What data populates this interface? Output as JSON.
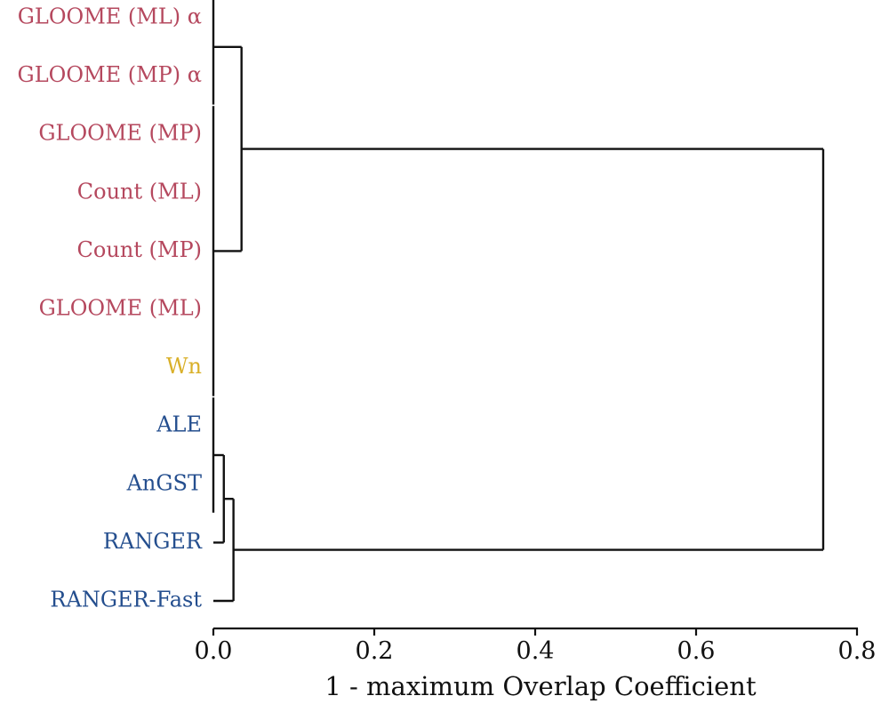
{
  "chart_data": {
    "type": "dendrogram",
    "title": "",
    "xlabel": "1 - maximum Overlap Coefficient",
    "ylabel": "",
    "xlim": [
      0,
      0.8
    ],
    "xticks": [
      "0.0",
      "0.2",
      "0.4",
      "0.6",
      "0.8"
    ],
    "leaves": [
      {
        "label": "GLOOME (ML) α",
        "color": "#b5485e"
      },
      {
        "label": "GLOOME (MP) α",
        "color": "#b5485e"
      },
      {
        "label": "GLOOME (MP)",
        "color": "#b5485e"
      },
      {
        "label": "Count (ML)",
        "color": "#b5485e"
      },
      {
        "label": "Count (MP)",
        "color": "#b5485e"
      },
      {
        "label": "GLOOME (ML)",
        "color": "#b5485e"
      },
      {
        "label": "Wn",
        "color": "#d9b02a"
      },
      {
        "label": "ALE",
        "color": "#244e8e"
      },
      {
        "label": "AnGST",
        "color": "#244e8e"
      },
      {
        "label": "RANGER",
        "color": "#244e8e"
      },
      {
        "label": "RANGER-Fast",
        "color": "#244e8e"
      }
    ],
    "merges": [
      {
        "children": [
          0,
          1
        ],
        "height": 0.0
      },
      {
        "children": [
          2,
          3,
          4,
          5,
          6
        ],
        "height": 0.0
      },
      {
        "children": [
          "m0",
          "m1"
        ],
        "height": 0.035
      },
      {
        "children": [
          7,
          8
        ],
        "height": 0.0
      },
      {
        "children": [
          "m3",
          9
        ],
        "height": 0.013
      },
      {
        "children": [
          "m4",
          10
        ],
        "height": 0.025
      },
      {
        "children": [
          "m2",
          "m5"
        ],
        "height": 0.758
      }
    ],
    "grid": false
  }
}
